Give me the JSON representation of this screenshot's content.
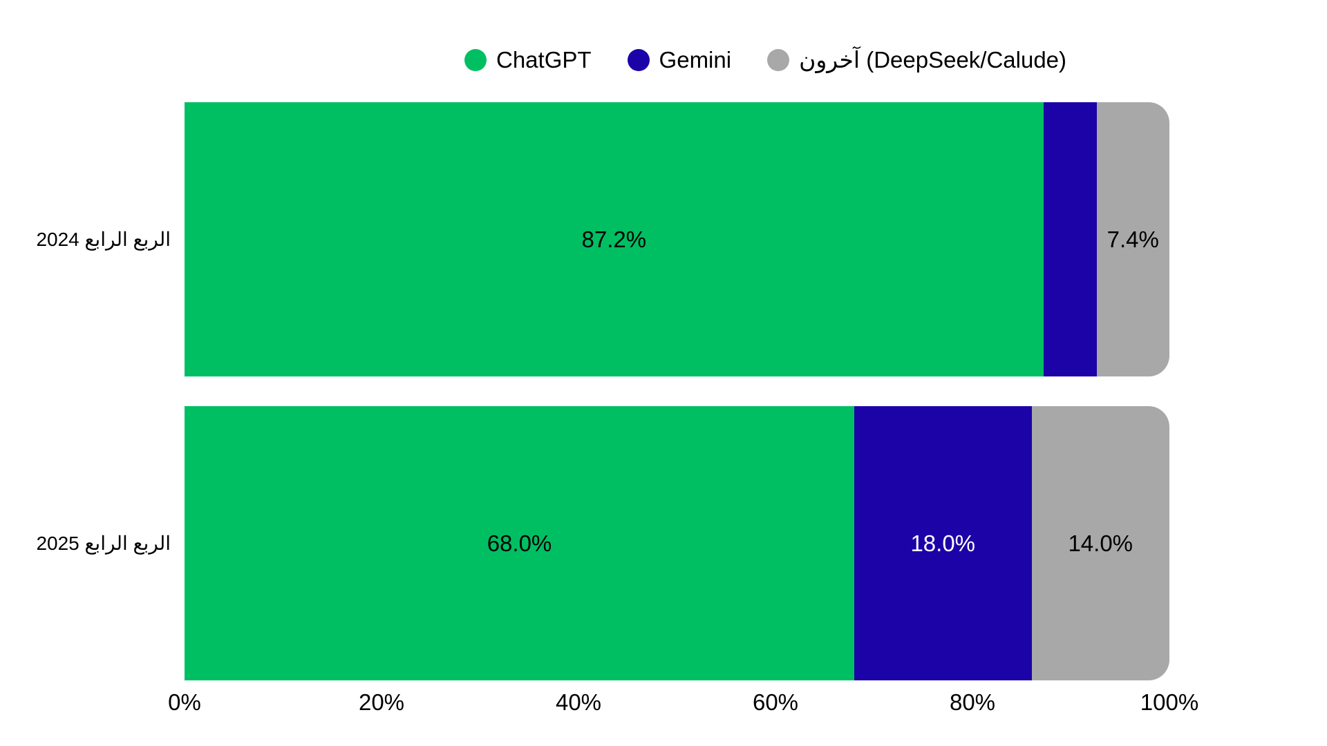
{
  "colors": {
    "chatgpt_green": "#00bf63",
    "gemini_blue": "#1b03a8",
    "others_gray": "#a8a8a8",
    "label_black": "#000000",
    "label_white": "#ffffff",
    "background": "#ffffff"
  },
  "chart_data": {
    "type": "bar",
    "orientation": "horizontal",
    "stacked": true,
    "grid": false,
    "legend_position": "top",
    "categories": [
      "الربع الرابع 2024",
      "الربع الرابع 2025"
    ],
    "series": [
      {
        "name": "ChatGPT",
        "color": "#00bf63",
        "values": [
          87.2,
          68.0
        ]
      },
      {
        "name": "Gemini",
        "color": "#1b03a8",
        "values": [
          5.4,
          18.0
        ]
      },
      {
        "name": "آخرون (DeepSeek/Calude)",
        "color": "#a8a8a8",
        "values": [
          7.4,
          14.0
        ]
      }
    ],
    "value_labels": [
      [
        "87.2%",
        "",
        "7.4%"
      ],
      [
        "68.0%",
        "18.0%",
        "14.0%"
      ]
    ],
    "value_label_colors": [
      [
        "#000000",
        "",
        "#000000"
      ],
      [
        "#000000",
        "#ffffff",
        "#000000"
      ]
    ],
    "xlim": [
      0,
      100
    ],
    "x_ticks": [
      "0%",
      "20%",
      "40%",
      "60%",
      "80%",
      "100%"
    ]
  }
}
